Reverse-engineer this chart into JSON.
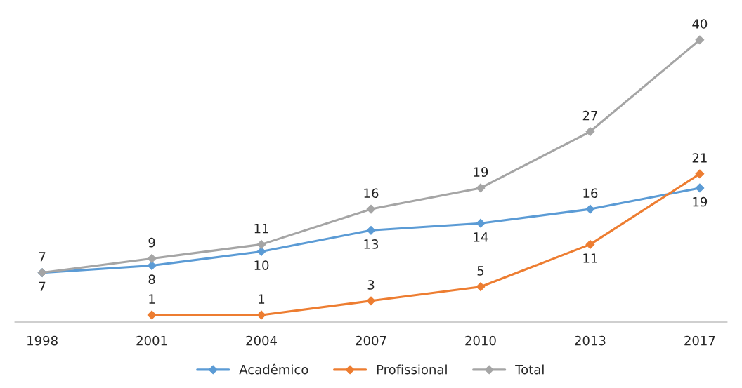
{
  "chart_data": {
    "type": "line",
    "categories": [
      "1998",
      "2001",
      "2004",
      "2007",
      "2010",
      "2013",
      "2017"
    ],
    "series": [
      {
        "name": "Acadêmico",
        "color": "#5b9bd5",
        "values": [
          7,
          8,
          10,
          13,
          14,
          16,
          19
        ]
      },
      {
        "name": "Profissional",
        "color": "#ed7d31",
        "values": [
          null,
          1,
          1,
          3,
          5,
          11,
          21
        ]
      },
      {
        "name": "Total",
        "color": "#a5a5a5",
        "values": [
          7,
          9,
          11,
          16,
          19,
          27,
          40
        ]
      }
    ],
    "tick_labels": "x",
    "grid": false,
    "legend": "bottom",
    "marker": "diamond",
    "line_style": "solid",
    "data_labels": true
  }
}
